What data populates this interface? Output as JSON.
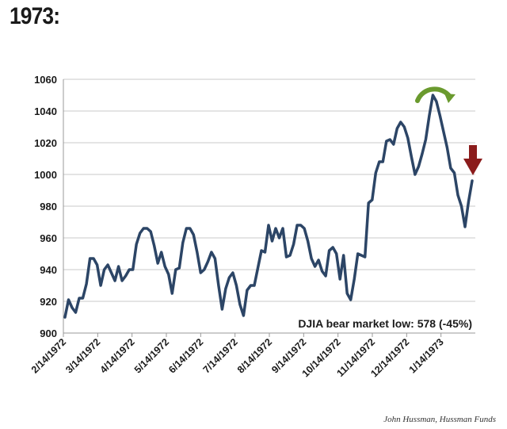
{
  "heading": "1973:",
  "credit": "John Hussman, Hussman Funds",
  "chart_data": {
    "type": "line",
    "title": "",
    "xlabel": "",
    "ylabel": "",
    "ylim": [
      900,
      1060
    ],
    "yticks": [
      900,
      920,
      940,
      960,
      980,
      1000,
      1020,
      1040,
      1060
    ],
    "xtick_labels": [
      "2/14/1972",
      "3/14/1972",
      "4/14/1972",
      "5/14/1972",
      "6/14/1972",
      "7/14/1972",
      "8/14/1972",
      "9/14/1972",
      "10/14/1972",
      "11/14/1972",
      "12/14/1972",
      "1/14/1973"
    ],
    "grid": true,
    "line_color": "#2c4566",
    "annotation": "DJIA bear market low: 578 (-45%)",
    "series": [
      {
        "values": [
          910,
          921,
          916,
          913,
          922,
          922,
          931,
          947,
          947,
          943,
          930,
          940,
          943,
          938,
          933,
          942,
          933,
          936,
          940,
          940,
          956,
          963,
          966,
          966,
          964,
          955,
          944,
          951,
          942,
          937,
          925,
          940,
          941,
          957,
          966,
          966,
          962,
          951,
          938,
          940,
          945,
          951,
          947,
          930,
          915,
          928,
          935,
          938,
          930,
          918,
          911,
          927,
          930,
          930,
          941,
          952,
          951,
          968,
          958,
          966,
          960,
          966,
          948,
          949,
          956,
          968,
          968,
          966,
          958,
          947,
          942,
          946,
          939,
          936,
          952,
          954,
          950,
          934,
          949,
          925,
          921,
          934,
          950,
          949,
          948,
          982,
          984,
          1001,
          1008,
          1008,
          1021,
          1022,
          1019,
          1029,
          1033,
          1030,
          1023,
          1011,
          1000,
          1005,
          1013,
          1022,
          1037,
          1050,
          1046,
          1037,
          1027,
          1017,
          1004,
          1001,
          987,
          980,
          967,
          983,
          996
        ]
      }
    ]
  }
}
